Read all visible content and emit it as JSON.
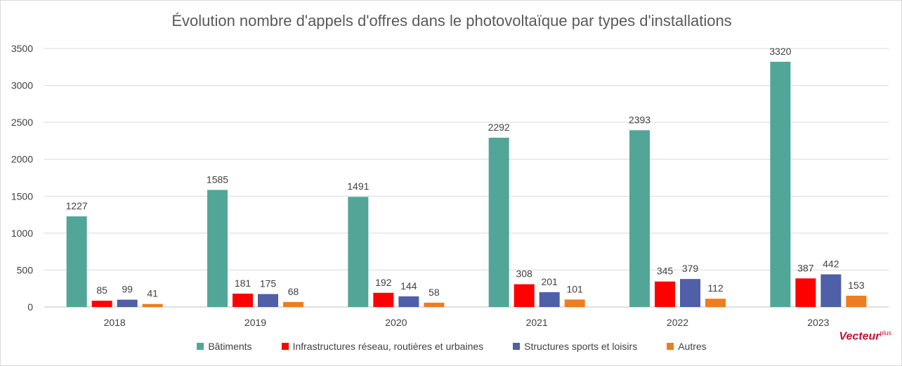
{
  "chart_data": {
    "type": "bar",
    "title": "Évolution nombre d'appels d'offres dans le photovoltaïque par types d'installations",
    "categories": [
      "2018",
      "2019",
      "2020",
      "2021",
      "2022",
      "2023"
    ],
    "ylim": [
      0,
      3500
    ],
    "yticks": [
      "0",
      "500",
      "1000",
      "1500",
      "2000",
      "2500",
      "3000",
      "3500"
    ],
    "grid": true,
    "legend_position": "bottom",
    "series": [
      {
        "name": "Bâtiments",
        "color": "#52a697",
        "values": [
          1227,
          1585,
          1491,
          2292,
          2393,
          3320
        ]
      },
      {
        "name": "Infrastructures réseau, routières et urbaines",
        "color": "#ff0000",
        "values": [
          85,
          181,
          192,
          308,
          345,
          387
        ]
      },
      {
        "name": "Structures sports et loisirs",
        "color": "#4f5fa8",
        "values": [
          99,
          175,
          144,
          201,
          379,
          442
        ]
      },
      {
        "name": "Autres",
        "color": "#ed7d1f",
        "values": [
          41,
          68,
          58,
          101,
          112,
          153
        ]
      }
    ]
  },
  "logo": {
    "text": "Vecteur",
    "suffix": "plus"
  }
}
